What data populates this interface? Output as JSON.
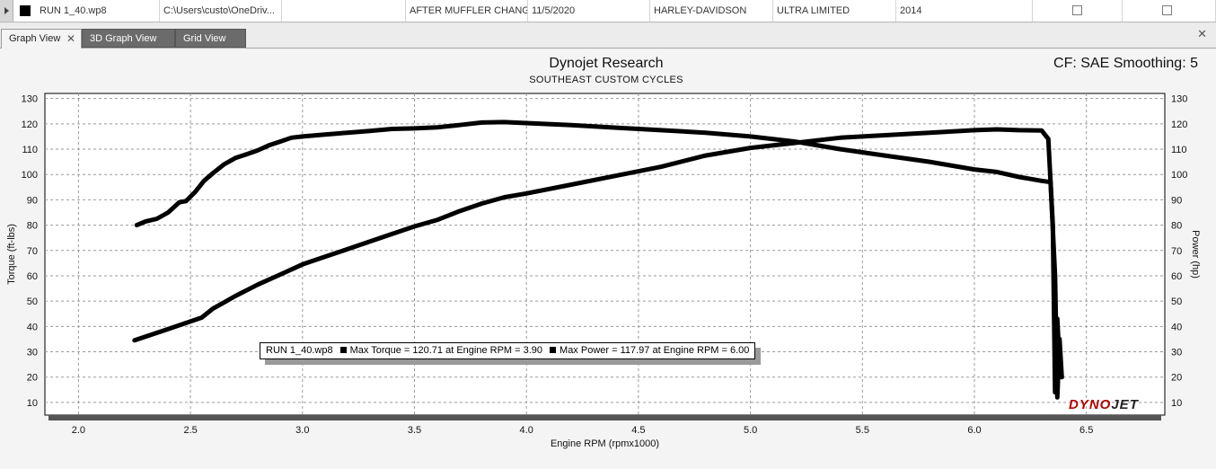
{
  "run_row": {
    "name": "RUN 1_40.wp8",
    "path": "C:\\Users\\custo\\OneDriv...",
    "note": "AFTER MUFFLER CHANGE",
    "date": "11/5/2020",
    "make": "HARLEY-DAVIDSON",
    "model": "ULTRA LIMITED",
    "year": "2014",
    "color": "#000000"
  },
  "tabs": [
    {
      "label": "Graph View",
      "active": true
    },
    {
      "label": "3D Graph View",
      "active": false
    },
    {
      "label": "Grid View",
      "active": false
    }
  ],
  "graph": {
    "title": "Dynojet Research",
    "subtitle": "SOUTHEAST CUSTOM CYCLES",
    "correction": "CF: SAE Smoothing: 5",
    "legend": {
      "run": "RUN 1_40.wp8",
      "max_torque": "Max Torque = 120.71 at Engine RPM = 3.90",
      "max_power": "Max Power = 117.97 at Engine RPM = 6.00"
    },
    "logo_red": "DYNO",
    "logo_dark": "JET"
  },
  "chart_data": {
    "type": "line",
    "xlabel": "Engine RPM (rpmx1000)",
    "ylabel": "Torque (ft-lbs)",
    "y2label": "Power (hp)",
    "xlim": [
      1.85,
      6.85
    ],
    "ylim": [
      5,
      132
    ],
    "y2lim": [
      5,
      132
    ],
    "xticks": [
      2.0,
      2.5,
      3.0,
      3.5,
      4.0,
      4.5,
      5.0,
      5.5,
      6.0,
      6.5
    ],
    "yticks": [
      10,
      20,
      30,
      40,
      50,
      60,
      70,
      80,
      90,
      100,
      110,
      120,
      130
    ],
    "grid": true,
    "line_color": "#000000",
    "series": [
      {
        "name": "Torque",
        "axis": "left",
        "x": [
          2.26,
          2.3,
          2.35,
          2.4,
          2.45,
          2.48,
          2.52,
          2.56,
          2.6,
          2.65,
          2.7,
          2.75,
          2.8,
          2.85,
          2.9,
          2.95,
          3.0,
          3.1,
          3.2,
          3.3,
          3.4,
          3.5,
          3.6,
          3.7,
          3.8,
          3.9,
          4.0,
          4.2,
          4.4,
          4.6,
          4.8,
          5.0,
          5.2,
          5.4,
          5.6,
          5.8,
          6.0,
          6.1,
          6.2,
          6.3,
          6.34,
          6.36,
          6.37,
          6.38,
          6.39
        ],
        "y": [
          80,
          81.5,
          82.5,
          85,
          89,
          89.5,
          93,
          97.5,
          100.5,
          104,
          106.5,
          108,
          109.5,
          111.5,
          113,
          114.5,
          115,
          115.8,
          116.5,
          117.2,
          118,
          118.2,
          118.6,
          119.5,
          120.5,
          120.7,
          120.3,
          119.5,
          118.5,
          117.5,
          116.5,
          115,
          113,
          110,
          107.5,
          105,
          102,
          101,
          99,
          97.5,
          97,
          60,
          12,
          35,
          20
        ]
      },
      {
        "name": "Power",
        "axis": "right",
        "x": [
          2.25,
          2.3,
          2.4,
          2.5,
          2.55,
          2.6,
          2.7,
          2.8,
          2.9,
          3.0,
          3.1,
          3.2,
          3.3,
          3.4,
          3.5,
          3.6,
          3.7,
          3.8,
          3.9,
          4.0,
          4.2,
          4.4,
          4.6,
          4.8,
          5.0,
          5.2,
          5.4,
          5.6,
          5.8,
          6.0,
          6.1,
          6.2,
          6.3,
          6.33,
          6.35,
          6.36,
          6.37,
          6.38,
          6.39
        ],
        "y": [
          34.5,
          36,
          39,
          42,
          43.5,
          47,
          52,
          56.5,
          60.5,
          64.5,
          67.5,
          70.5,
          73.5,
          76.5,
          79.5,
          82,
          85.5,
          88.5,
          91,
          92.5,
          96,
          99.5,
          103,
          107.5,
          110.5,
          112.5,
          114.5,
          115.5,
          116.5,
          117.5,
          117.8,
          117.5,
          117.4,
          114,
          80,
          14,
          43,
          25,
          20
        ]
      }
    ]
  }
}
